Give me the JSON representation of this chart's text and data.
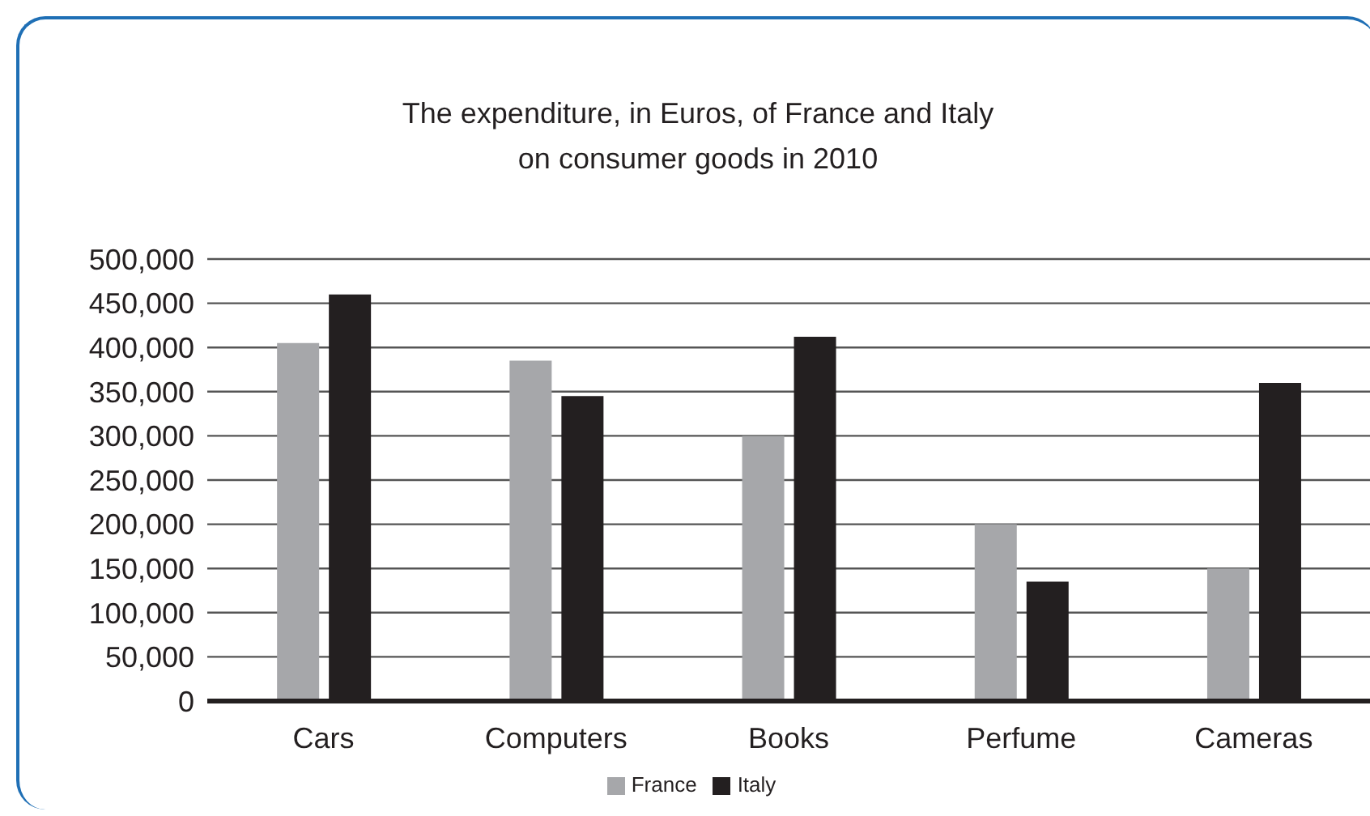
{
  "chart_data": {
    "type": "bar",
    "title": "The expenditure, in Euros, of France and Italy\non consumer goods in 2010",
    "categories": [
      "Cars",
      "Computers",
      "Books",
      "Perfume",
      "Cameras"
    ],
    "series": [
      {
        "name": "France",
        "color": "#a6a7aa",
        "values": [
          405000,
          385000,
          300000,
          200000,
          150000
        ]
      },
      {
        "name": "Italy",
        "color": "#231f20",
        "values": [
          460000,
          345000,
          412000,
          135000,
          360000
        ]
      }
    ],
    "ylim": [
      0,
      500000
    ],
    "yticks": [
      {
        "value": 0,
        "label": "0"
      },
      {
        "value": 50000,
        "label": "50,000"
      },
      {
        "value": 100000,
        "label": "100,000"
      },
      {
        "value": 150000,
        "label": "150,000"
      },
      {
        "value": 200000,
        "label": "200,000"
      },
      {
        "value": 250000,
        "label": "250,000"
      },
      {
        "value": 300000,
        "label": "300,000"
      },
      {
        "value": 350000,
        "label": "350,000"
      },
      {
        "value": 400000,
        "label": "400,000"
      },
      {
        "value": 450000,
        "label": "450,000"
      },
      {
        "value": 500000,
        "label": "500,000"
      }
    ],
    "grid": "y",
    "legend": "bottom"
  }
}
